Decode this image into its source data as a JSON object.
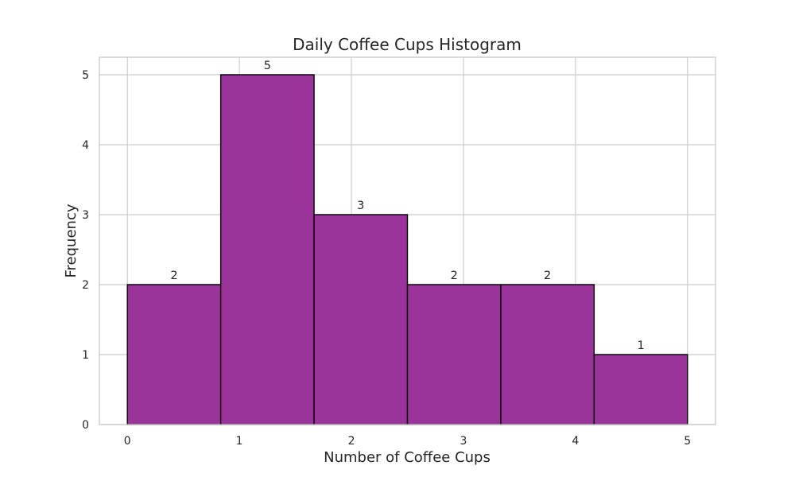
{
  "chart_data": {
    "type": "bar",
    "subtype": "histogram",
    "title": "Daily Coffee Cups Histogram",
    "xlabel": "Number of Coffee Cups",
    "ylabel": "Frequency",
    "bin_edges": [
      0,
      0.8333,
      1.6667,
      2.5,
      3.3333,
      4.1667,
      5
    ],
    "values": [
      2,
      5,
      3,
      2,
      2,
      1
    ],
    "data_labels": [
      "2",
      "5",
      "3",
      "2",
      "2",
      "1"
    ],
    "xlim": [
      -0.25,
      5.25
    ],
    "ylim": [
      0,
      5.25
    ],
    "x_ticks": [
      0,
      1,
      2,
      3,
      4,
      5
    ],
    "x_tick_labels": [
      "0",
      "1",
      "2",
      "3",
      "4",
      "5"
    ],
    "y_ticks": [
      0,
      1,
      2,
      3,
      4,
      5
    ],
    "y_tick_labels": [
      "0",
      "1",
      "2",
      "3",
      "4",
      "5"
    ],
    "grid": true,
    "colors": {
      "bar_fill": "#9a339a",
      "bar_edge": "#000000",
      "grid": "#cccccc",
      "frame": "#cccccc",
      "text": "#262626"
    }
  }
}
